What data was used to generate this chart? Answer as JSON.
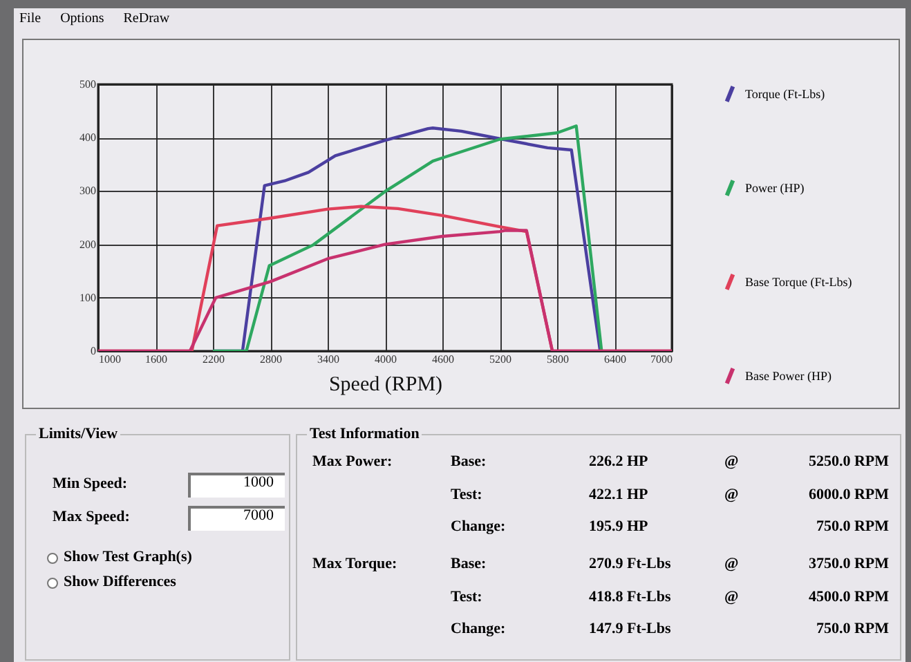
{
  "chart_data": [
    {
      "type": "line",
      "xlabel": "Speed (RPM)",
      "xlim": [
        1000,
        7000
      ],
      "xticks": [
        1000,
        1600,
        2200,
        2800,
        3400,
        4000,
        4600,
        5200,
        5800,
        6400,
        7000
      ],
      "ylim": [
        0,
        500
      ],
      "yticks": [
        0,
        100,
        200,
        300,
        400,
        500
      ],
      "grid": true,
      "legend": "right",
      "marker": "none",
      "line_style": "solid",
      "series": [
        {
          "name": "Torque (Ft-Lbs)",
          "color": "#4b3fa0",
          "x": [
            2200,
            2510,
            2740,
            2950,
            3200,
            3480,
            4000,
            4450,
            4500,
            4800,
            5200,
            5700,
            5950,
            6250
          ],
          "values": [
            0,
            0,
            310,
            319,
            335,
            366,
            395,
            417,
            418,
            412,
            398,
            381,
            377,
            0
          ]
        },
        {
          "name": "Power (HP)",
          "color": "#2ea860",
          "x": [
            2200,
            2550,
            2790,
            3250,
            4000,
            4500,
            4600,
            5200,
            5800,
            6000,
            6265
          ],
          "values": [
            0,
            0,
            160,
            199,
            299,
            356,
            362,
            397,
            409,
            422,
            0
          ]
        },
        {
          "name": "Base Torque (Ft-Lbs)",
          "color": "#e0405a",
          "x": [
            1000,
            1980,
            2245,
            2800,
            3400,
            3750,
            4135,
            4600,
            5200,
            5480,
            5750,
            7000
          ],
          "values": [
            0,
            0,
            235,
            249,
            266,
            271,
            267,
            254,
            233,
            224,
            0,
            0
          ]
        },
        {
          "name": "Base Power (HP)",
          "color": "#c8326e",
          "x": [
            1000,
            1960,
            2230,
            2800,
            3400,
            4000,
            4600,
            5200,
            5250,
            5480,
            5750,
            7000
          ],
          "values": [
            0,
            0,
            100,
            130,
            173,
            200,
            215,
            224,
            226,
            226,
            0,
            0
          ]
        }
      ]
    },
    {
      "type": "other",
      "annotations": [
        "File",
        "Options",
        "ReDraw",
        "Limits/View",
        "Min Speed:",
        "1000",
        "Max Speed:",
        "7000",
        "Show Test Graph(s)",
        "Show Differences",
        "Test Information",
        "Max Power:",
        "Base:",
        "226.2 HP",
        "@",
        "5250.0 RPM",
        "Test:",
        "422.1 HP",
        "@",
        "6000.0 RPM",
        "Change:",
        "195.9 HP",
        "750.0 RPM",
        "Max Torque:",
        "Base:",
        "270.9 Ft-Lbs",
        "@",
        "3750.0 RPM",
        "Test:",
        "418.8 Ft-Lbs",
        "@",
        "4500.0 RPM",
        "Change:",
        "147.9 Ft-Lbs",
        "750.0 RPM"
      ]
    }
  ]
}
